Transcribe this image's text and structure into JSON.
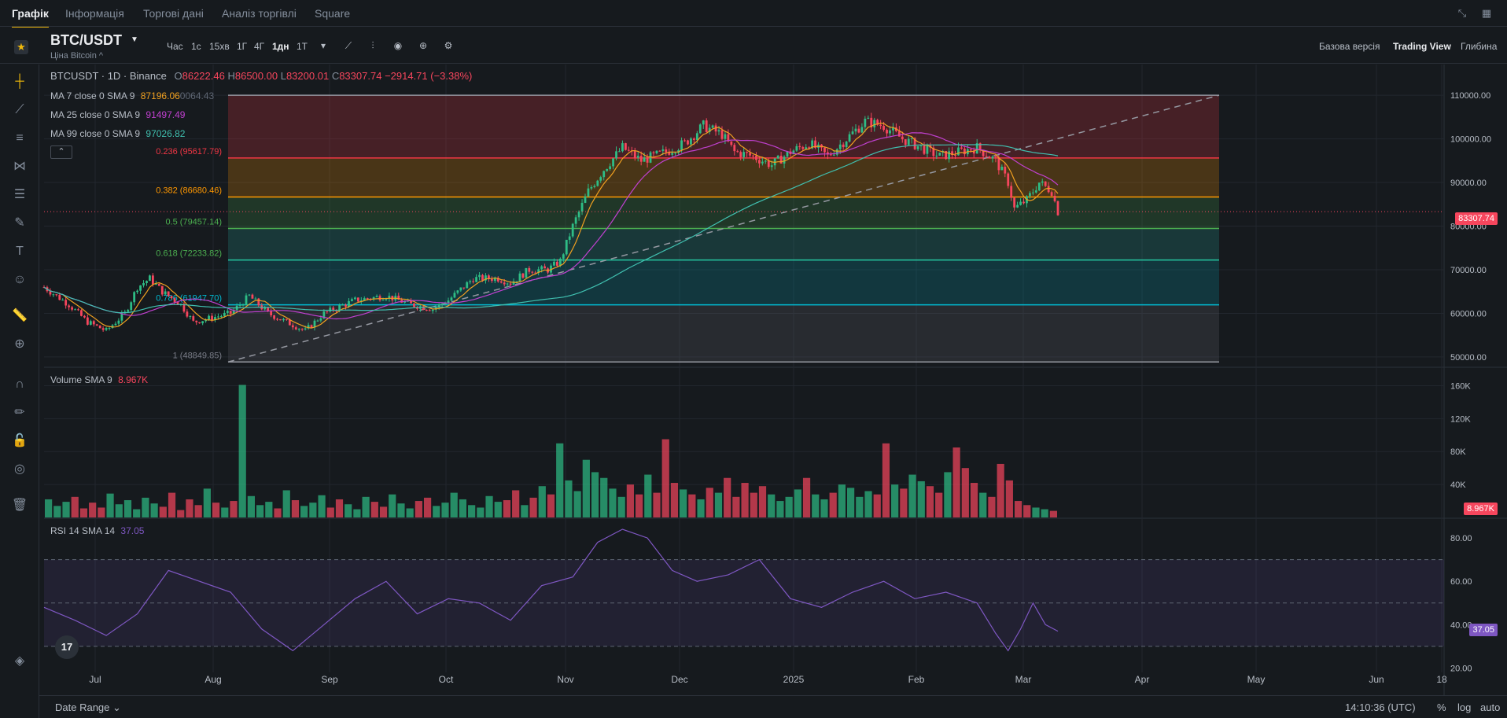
{
  "tabs": [
    "Графік",
    "Інформація",
    "Торгові дані",
    "Аналіз торгівлі",
    "Square"
  ],
  "symbol": "BTC/USDT",
  "symbol_sub": "Ціна Bitcoin ^",
  "timeframes": [
    "Час",
    "1с",
    "15хв",
    "1Г",
    "4Г",
    "1дн",
    "1Т"
  ],
  "active_timeframe": "1дн",
  "view_options": [
    "Базова версія",
    "Trading View",
    "Глибина"
  ],
  "active_view": "Trading View",
  "legend": {
    "title": "BTCUSDT · 1D · Binance",
    "o_label": "O",
    "o": "86222.46",
    "h_label": "H",
    "h": "86500.00",
    "l_label": "L",
    "l": "83200.01",
    "c_label": "C",
    "c": "83307.74",
    "change": "−2914.71 (−3.38%)",
    "ma7_label": "MA 7 close 0 SMA 9",
    "ma7": "87196.06",
    "ma7_overlap": "0064.43",
    "ma25_label": "MA 25 close 0 SMA 9",
    "ma25": "91497.49",
    "ma99_label": "MA 99 close 0 SMA 9",
    "ma99": "97026.82",
    "volume_label": "Volume SMA 9",
    "volume": "8.967K",
    "rsi_label": "RSI 14 SMA 14",
    "rsi": "37.05"
  },
  "fib_levels": [
    {
      "label": "0.236 (95617.79)",
      "price": 95617.79,
      "color": "#f23645"
    },
    {
      "label": "0.382 (86680.46)",
      "price": 86680.46,
      "color": "#ff9800"
    },
    {
      "label": "0.5 (79457.14)",
      "price": 79457.14,
      "color": "#4caf50"
    },
    {
      "label": "0.618 (72233.82)",
      "price": 72233.82,
      "color": "#4caf50"
    },
    {
      "label": "0.786 (61947.70)",
      "price": 61947.7,
      "color": "#00bcd4"
    },
    {
      "label": "1 (48849.85)",
      "price": 48849.85,
      "color": "#787b86"
    }
  ],
  "price_axis": [
    "110000.00",
    "100000.00",
    "90000.00",
    "80000.00",
    "70000.00",
    "60000.00",
    "50000.00"
  ],
  "volume_axis": [
    "160K",
    "120K",
    "80K",
    "40K"
  ],
  "rsi_axis": [
    "80.00",
    "60.00",
    "40.00",
    "20.00"
  ],
  "time_axis": [
    "Jul",
    "Aug",
    "Sep",
    "Oct",
    "Nov",
    "Dec",
    "2025",
    "Feb",
    "Mar",
    "Apr",
    "May",
    "Jun",
    "18"
  ],
  "last_price_tag": "83307.74",
  "volume_tag": "8.967K",
  "rsi_tag": "37.05",
  "bottom": {
    "date_range": "Date Range",
    "clock": "14:10:36 (UTC)",
    "percent": "%",
    "log": "log",
    "auto": "auto"
  },
  "colors": {
    "up": "#2ebd85",
    "down": "#f6465d",
    "accent": "#f0b90b",
    "ma7": "#f0a020",
    "ma25": "#c040d0",
    "ma99": "#40c0b0",
    "rsi": "#7e57c2"
  },
  "chart_data": {
    "type": "line",
    "title": "BTCUSDT · 1D · Binance",
    "x_range": [
      "2024-06",
      "2025-06"
    ],
    "price_ylim": [
      48000,
      112000
    ],
    "price_path": [
      [
        0,
        66000
      ],
      [
        8,
        62000
      ],
      [
        14,
        58000
      ],
      [
        20,
        56000
      ],
      [
        26,
        60000
      ],
      [
        30,
        66000
      ],
      [
        34,
        68000
      ],
      [
        38,
        65000
      ],
      [
        44,
        62000
      ],
      [
        48,
        58000
      ],
      [
        54,
        59000
      ],
      [
        60,
        60000
      ],
      [
        66,
        64000
      ],
      [
        72,
        60000
      ],
      [
        78,
        58000
      ],
      [
        84,
        56000
      ],
      [
        90,
        60000
      ],
      [
        100,
        63000
      ],
      [
        110,
        64000
      ],
      [
        118,
        62000
      ],
      [
        125,
        61000
      ],
      [
        130,
        63000
      ],
      [
        138,
        68000
      ],
      [
        146,
        68000
      ],
      [
        150,
        67000
      ],
      [
        156,
        70000
      ],
      [
        162,
        70000
      ],
      [
        166,
        72000
      ],
      [
        170,
        80000
      ],
      [
        175,
        88000
      ],
      [
        180,
        93000
      ],
      [
        186,
        98000
      ],
      [
        192,
        95000
      ],
      [
        200,
        97000
      ],
      [
        206,
        99000
      ],
      [
        212,
        103000
      ],
      [
        218,
        101000
      ],
      [
        222,
        97000
      ],
      [
        228,
        96000
      ],
      [
        234,
        94000
      ],
      [
        240,
        97000
      ],
      [
        246,
        99000
      ],
      [
        252,
        96000
      ],
      [
        258,
        100000
      ],
      [
        264,
        104000
      ],
      [
        270,
        103000
      ],
      [
        276,
        100000
      ],
      [
        282,
        98000
      ],
      [
        288,
        96000
      ],
      [
        294,
        97000
      ],
      [
        300,
        98000
      ],
      [
        306,
        95000
      ],
      [
        310,
        90000
      ],
      [
        312,
        84000
      ],
      [
        316,
        86000
      ],
      [
        320,
        90000
      ],
      [
        324,
        88000
      ],
      [
        326,
        83300
      ]
    ],
    "volume_k": [
      22,
      14,
      19,
      25,
      11,
      18,
      12,
      29,
      16,
      21,
      10,
      24,
      17,
      13,
      30,
      9,
      22,
      15,
      35,
      18,
      12,
      20,
      161,
      26,
      15,
      19,
      11,
      33,
      21,
      14,
      18,
      27,
      12,
      22,
      16,
      10,
      25,
      19,
      13,
      28,
      17,
      11,
      20,
      24,
      14,
      18,
      30,
      22,
      15,
      12,
      26,
      19,
      21,
      33,
      15,
      24,
      38,
      28,
      90,
      45,
      32,
      70,
      55,
      48,
      35,
      25,
      40,
      28,
      52,
      30,
      95,
      42,
      34,
      28,
      22,
      36,
      30,
      48,
      25,
      42,
      30,
      38,
      28,
      20,
      25,
      34,
      48,
      28,
      22,
      30,
      40,
      36,
      25,
      32,
      28,
      90,
      40,
      35,
      52,
      44,
      38,
      30,
      55,
      85,
      60,
      42,
      30,
      25,
      65,
      45,
      20,
      15,
      12,
      10,
      8
    ],
    "rsi_path": [
      [
        0,
        48
      ],
      [
        10,
        42
      ],
      [
        20,
        35
      ],
      [
        30,
        45
      ],
      [
        40,
        65
      ],
      [
        50,
        60
      ],
      [
        60,
        55
      ],
      [
        70,
        38
      ],
      [
        80,
        28
      ],
      [
        90,
        40
      ],
      [
        100,
        52
      ],
      [
        110,
        60
      ],
      [
        120,
        45
      ],
      [
        130,
        52
      ],
      [
        140,
        50
      ],
      [
        150,
        42
      ],
      [
        160,
        58
      ],
      [
        170,
        62
      ],
      [
        178,
        78
      ],
      [
        186,
        84
      ],
      [
        194,
        80
      ],
      [
        202,
        65
      ],
      [
        210,
        60
      ],
      [
        220,
        63
      ],
      [
        230,
        70
      ],
      [
        240,
        52
      ],
      [
        250,
        48
      ],
      [
        260,
        55
      ],
      [
        270,
        60
      ],
      [
        280,
        52
      ],
      [
        290,
        55
      ],
      [
        300,
        50
      ],
      [
        306,
        36
      ],
      [
        310,
        28
      ],
      [
        314,
        38
      ],
      [
        318,
        50
      ],
      [
        322,
        40
      ],
      [
        326,
        37
      ]
    ]
  }
}
